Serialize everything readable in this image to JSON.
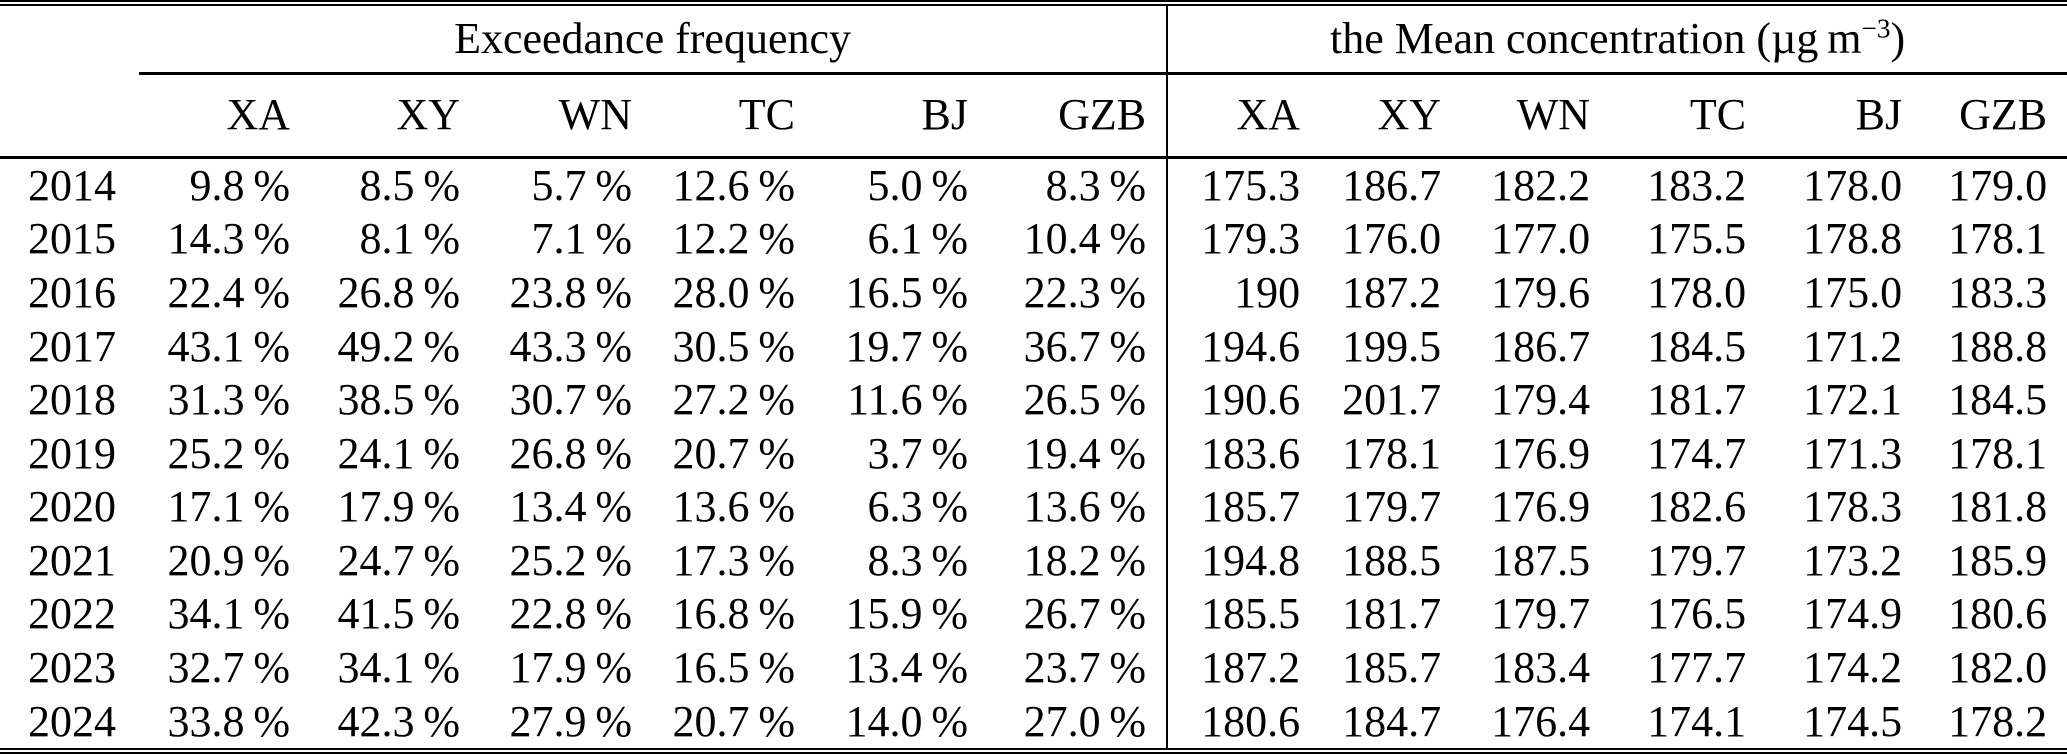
{
  "table": {
    "groups": [
      {
        "title": "Exceedance frequency"
      },
      {
        "title_prefix": "the Mean concentration (µg m",
        "title_sup": "−3",
        "title_suffix": ")"
      }
    ],
    "station_columns": [
      "XA",
      "XY",
      "WN",
      "TC",
      "BJ",
      "GZB"
    ],
    "rows": [
      {
        "year": "2014",
        "exceedance_frequency": [
          "9.8 %",
          "8.5 %",
          "5.7 %",
          "12.6 %",
          "5.0 %",
          "8.3 %"
        ],
        "mean_concentration": [
          "175.3",
          "186.7",
          "182.2",
          "183.2",
          "178.0",
          "179.0"
        ]
      },
      {
        "year": "2015",
        "exceedance_frequency": [
          "14.3 %",
          "8.1 %",
          "7.1 %",
          "12.2 %",
          "6.1 %",
          "10.4 %"
        ],
        "mean_concentration": [
          "179.3",
          "176.0",
          "177.0",
          "175.5",
          "178.8",
          "178.1"
        ]
      },
      {
        "year": "2016",
        "exceedance_frequency": [
          "22.4 %",
          "26.8 %",
          "23.8 %",
          "28.0 %",
          "16.5 %",
          "22.3 %"
        ],
        "mean_concentration": [
          "190",
          "187.2",
          "179.6",
          "178.0",
          "175.0",
          "183.3"
        ]
      },
      {
        "year": "2017",
        "exceedance_frequency": [
          "43.1 %",
          "49.2 %",
          "43.3 %",
          "30.5 %",
          "19.7 %",
          "36.7 %"
        ],
        "mean_concentration": [
          "194.6",
          "199.5",
          "186.7",
          "184.5",
          "171.2",
          "188.8"
        ]
      },
      {
        "year": "2018",
        "exceedance_frequency": [
          "31.3 %",
          "38.5 %",
          "30.7 %",
          "27.2 %",
          "11.6 %",
          "26.5 %"
        ],
        "mean_concentration": [
          "190.6",
          "201.7",
          "179.4",
          "181.7",
          "172.1",
          "184.5"
        ]
      },
      {
        "year": "2019",
        "exceedance_frequency": [
          "25.2 %",
          "24.1 %",
          "26.8 %",
          "20.7 %",
          "3.7 %",
          "19.4 %"
        ],
        "mean_concentration": [
          "183.6",
          "178.1",
          "176.9",
          "174.7",
          "171.3",
          "178.1"
        ]
      },
      {
        "year": "2020",
        "exceedance_frequency": [
          "17.1 %",
          "17.9 %",
          "13.4 %",
          "13.6 %",
          "6.3 %",
          "13.6 %"
        ],
        "mean_concentration": [
          "185.7",
          "179.7",
          "176.9",
          "182.6",
          "178.3",
          "181.8"
        ]
      },
      {
        "year": "2021",
        "exceedance_frequency": [
          "20.9 %",
          "24.7 %",
          "25.2 %",
          "17.3 %",
          "8.3 %",
          "18.2 %"
        ],
        "mean_concentration": [
          "194.8",
          "188.5",
          "187.5",
          "179.7",
          "173.2",
          "185.9"
        ]
      },
      {
        "year": "2022",
        "exceedance_frequency": [
          "34.1 %",
          "41.5 %",
          "22.8 %",
          "16.8 %",
          "15.9 %",
          "26.7 %"
        ],
        "mean_concentration": [
          "185.5",
          "181.7",
          "179.7",
          "176.5",
          "174.9",
          "180.6"
        ]
      },
      {
        "year": "2023",
        "exceedance_frequency": [
          "32.7 %",
          "34.1 %",
          "17.9 %",
          "16.5 %",
          "13.4 %",
          "23.7 %"
        ],
        "mean_concentration": [
          "187.2",
          "185.7",
          "183.4",
          "177.7",
          "174.2",
          "182.0"
        ]
      },
      {
        "year": "2024",
        "exceedance_frequency": [
          "33.8 %",
          "42.3 %",
          "27.9 %",
          "20.7 %",
          "14.0 %",
          "27.0 %"
        ],
        "mean_concentration": [
          "180.6",
          "184.7",
          "176.4",
          "174.1",
          "174.5",
          "178.2"
        ]
      }
    ]
  }
}
